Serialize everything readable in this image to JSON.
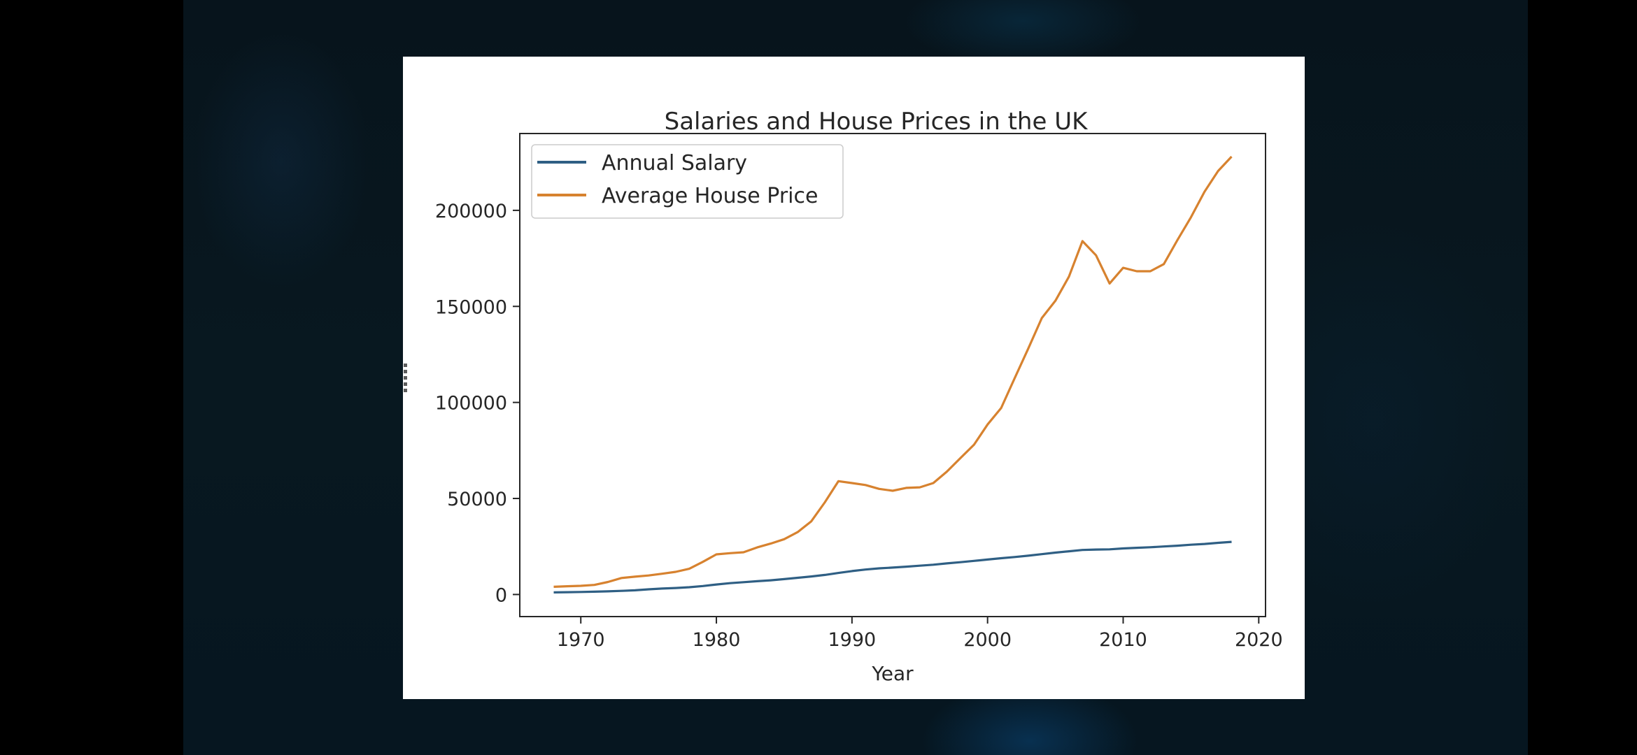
{
  "colors": {
    "salary": "#2f5f84",
    "house_price": "#d7822f",
    "axis": "#262626",
    "panel": "#ffffff",
    "background": "#07141c"
  },
  "chart_data": {
    "type": "line",
    "title": "Salaries and House Prices in the UK",
    "xlabel": "Year",
    "ylabel": "",
    "xlim": [
      1965.5,
      2020.5
    ],
    "ylim": [
      -11500,
      240000
    ],
    "xticks": [
      1970,
      1980,
      1990,
      2000,
      2010,
      2020
    ],
    "xtick_labels": [
      "1970",
      "1980",
      "1990",
      "2000",
      "2010",
      "2020"
    ],
    "yticks": [
      0,
      50000,
      100000,
      150000,
      200000
    ],
    "ytick_labels": [
      "0",
      "50000",
      "100000",
      "150000",
      "200000"
    ],
    "grid": false,
    "legend_position": "upper-left",
    "x": [
      1968,
      1969,
      1970,
      1971,
      1972,
      1973,
      1974,
      1975,
      1976,
      1977,
      1978,
      1979,
      1980,
      1981,
      1982,
      1983,
      1984,
      1985,
      1986,
      1987,
      1988,
      1989,
      1990,
      1991,
      1992,
      1993,
      1994,
      1995,
      1996,
      1997,
      1998,
      1999,
      2000,
      2001,
      2002,
      2003,
      2004,
      2005,
      2006,
      2007,
      2008,
      2009,
      2010,
      2011,
      2012,
      2013,
      2014,
      2015,
      2016,
      2017,
      2018
    ],
    "series": [
      {
        "name": "Annual Salary",
        "color_key": "salary",
        "values": [
          1100,
          1200,
          1300,
          1450,
          1650,
          1900,
          2200,
          2700,
          3100,
          3400,
          3800,
          4400,
          5200,
          5900,
          6400,
          6900,
          7400,
          8000,
          8700,
          9400,
          10200,
          11200,
          12200,
          13000,
          13600,
          14000,
          14500,
          15000,
          15500,
          16200,
          16800,
          17500,
          18200,
          18900,
          19500,
          20200,
          21000,
          21800,
          22500,
          23200,
          23400,
          23500,
          24000,
          24300,
          24600,
          25000,
          25400,
          25900,
          26300,
          26900,
          27400
        ]
      },
      {
        "name": "Average House Price",
        "color_key": "house_price",
        "values": [
          4000,
          4300,
          4500,
          5000,
          6500,
          8600,
          9300,
          9900,
          10800,
          11800,
          13400,
          17000,
          20900,
          21500,
          22000,
          24500,
          26500,
          28800,
          32500,
          38100,
          48000,
          59000,
          58000,
          57000,
          55000,
          54000,
          55500,
          55800,
          58000,
          64000,
          71000,
          78000,
          88500,
          97100,
          112600,
          128000,
          143900,
          152900,
          165500,
          184000,
          176600,
          161900,
          170100,
          168300,
          168300,
          172000,
          184500,
          196400,
          209700,
          220500,
          228000
        ]
      }
    ]
  }
}
